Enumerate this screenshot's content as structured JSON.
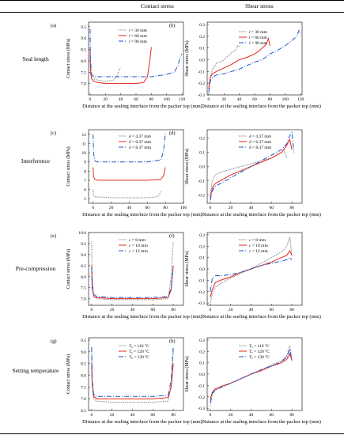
{
  "header": {
    "col1": "Contact stress",
    "col2": "Shear stress"
  },
  "rows": [
    {
      "label": "Seal length"
    },
    {
      "label": "Interference"
    },
    {
      "label": "Pre-compression"
    },
    {
      "label": "Setting temperature"
    }
  ],
  "chart_data": [
    {
      "id": "a",
      "panel": "(a)",
      "type": "line",
      "ylabel": "Contact stress (MPa)",
      "xlabel": "Distance at the sealing interface from the packer top (mm)",
      "xlim": [
        -2,
        122
      ],
      "ylim": [
        6.5,
        9.7
      ],
      "xticks": [
        0,
        20,
        40,
        60,
        80,
        100,
        120
      ],
      "yticks": [
        7.0,
        7.5,
        8.0,
        8.5,
        9.0,
        9.5
      ],
      "yticklabels": [
        "7.0",
        "7.5",
        "8.0",
        "8.5",
        "9.0",
        "9.5"
      ],
      "series": [
        {
          "name": "l = 30 mm",
          "color": "#777777",
          "dash": "1.2,1.2",
          "x": [
            0,
            0.5,
            2,
            5,
            10,
            20,
            30,
            35,
            38,
            40
          ],
          "y": [
            8.5,
            7.7,
            7.4,
            7.2,
            7.15,
            7.1,
            7.15,
            7.3,
            7.6,
            7.7
          ]
        },
        {
          "name": "l = 60 mm",
          "color": "#e8261f",
          "dash": "",
          "x": [
            0,
            0.5,
            2,
            5,
            10,
            20,
            40,
            60,
            70,
            75,
            78,
            80
          ],
          "y": [
            8.5,
            7.5,
            7.2,
            7.1,
            7.05,
            7.0,
            7.0,
            7.0,
            7.05,
            7.3,
            8.0,
            8.6
          ]
        },
        {
          "name": "l = 90 mm",
          "color": "#1a56c9",
          "dash": "6,2,1,2",
          "x": [
            0,
            0.5,
            2,
            5,
            10,
            20,
            40,
            60,
            80,
            100,
            110,
            115,
            118,
            120
          ],
          "y": [
            9.4,
            8.0,
            7.4,
            7.3,
            7.3,
            7.3,
            7.3,
            7.3,
            7.3,
            7.4,
            7.5,
            7.8,
            8.2,
            8.3
          ]
        }
      ]
    },
    {
      "id": "b",
      "panel": "(b)",
      "type": "line",
      "ylabel": "Shear stress (MPa)",
      "xlabel": "Distance at the sealing interface from the packer top (mm)",
      "xlim": [
        -2,
        122
      ],
      "ylim": [
        -0.3,
        0.32
      ],
      "xticks": [
        0,
        20,
        40,
        60,
        80,
        100,
        120
      ],
      "yticks": [
        -0.3,
        -0.2,
        -0.1,
        0.0,
        0.1,
        0.2,
        0.3
      ],
      "yticklabels": [
        "-0.3",
        "-0.2",
        "-0.1",
        "0.0",
        "0.1",
        "0.2",
        "0.3"
      ],
      "series": [
        {
          "name": "l = 30 mm",
          "color": "#777777",
          "dash": "1.2,1.2",
          "x": [
            0,
            2,
            5,
            10,
            15,
            20,
            25,
            30,
            35,
            38,
            40
          ],
          "y": [
            -0.25,
            -0.15,
            -0.08,
            -0.03,
            -0.02,
            0.0,
            0.03,
            0.06,
            0.08,
            0.12,
            0.11
          ]
        },
        {
          "name": "l = 60 mm",
          "color": "#e8261f",
          "dash": "",
          "x": [
            0,
            2,
            5,
            10,
            20,
            30,
            40,
            50,
            60,
            65,
            70,
            75,
            78,
            80
          ],
          "y": [
            -0.25,
            -0.15,
            -0.12,
            -0.1,
            -0.07,
            -0.04,
            0.0,
            0.02,
            0.05,
            0.07,
            0.1,
            0.13,
            0.18,
            0.12
          ]
        },
        {
          "name": "l = 90 mm",
          "color": "#1a56c9",
          "dash": "6,2,1,2",
          "x": [
            0,
            2,
            5,
            10,
            20,
            30,
            40,
            50,
            60,
            70,
            80,
            90,
            100,
            110,
            115,
            118,
            120
          ],
          "y": [
            -0.28,
            -0.18,
            -0.15,
            -0.13,
            -0.12,
            -0.1,
            -0.08,
            -0.05,
            -0.02,
            0.0,
            0.05,
            0.08,
            0.12,
            0.17,
            0.2,
            0.25,
            0.22
          ]
        }
      ]
    },
    {
      "id": "c",
      "panel": "(c)",
      "type": "line",
      "ylabel": "Contact stress (MPa)",
      "xlabel": "Distance at the sealing interface from the packer top (mm)",
      "xlim": [
        -5,
        100
      ],
      "ylim": [
        4.5,
        12.5
      ],
      "xticks": [
        0,
        20,
        40,
        60,
        80,
        100
      ],
      "yticks": [
        5,
        6,
        7,
        8,
        9,
        10,
        11,
        12
      ],
      "yticklabels": [
        "5",
        "6",
        "7",
        "8",
        "9",
        "10",
        "11",
        "12"
      ],
      "series": [
        {
          "name": "δ = 4.37 mm",
          "color": "#777777",
          "dash": "1.2,1.2",
          "x": [
            0,
            0.5,
            2,
            5,
            20,
            40,
            60,
            70,
            73,
            75
          ],
          "y": [
            6.0,
            5.4,
            5.2,
            5.2,
            5.1,
            5.1,
            5.1,
            5.2,
            5.4,
            5.8
          ]
        },
        {
          "name": "δ = 6.37 mm",
          "color": "#e8261f",
          "dash": "",
          "x": [
            0,
            0.5,
            2,
            5,
            20,
            40,
            60,
            75,
            78,
            80
          ],
          "y": [
            8.4,
            7.4,
            7.1,
            7.0,
            7.0,
            7.0,
            7.0,
            7.1,
            7.5,
            8.4
          ]
        },
        {
          "name": "δ = 8.37 mm",
          "color": "#1a56c9",
          "dash": "6,2,1,2",
          "x": [
            0,
            0.5,
            2,
            5,
            20,
            40,
            60,
            75,
            78,
            80
          ],
          "y": [
            12.0,
            10.0,
            9.1,
            9.0,
            9.0,
            9.0,
            9.0,
            9.2,
            10.2,
            12.1
          ]
        }
      ]
    },
    {
      "id": "d",
      "panel": "(d)",
      "type": "line",
      "ylabel": "Shear stress (MPa)",
      "xlabel": "Distance at the sealing interface from the packer top (mm)",
      "xlim": [
        -3,
        90
      ],
      "ylim": [
        -0.26,
        0.26
      ],
      "xticks": [
        0,
        20,
        40,
        60,
        80
      ],
      "yticks": [
        -0.2,
        -0.1,
        0.0,
        0.1,
        0.2
      ],
      "yticklabels": [
        "-0.2",
        "-0.1",
        "0.0",
        "0.1",
        "0.2"
      ],
      "series": [
        {
          "name": "δ = 4.37 mm",
          "color": "#777777",
          "dash": "1.2,1.2",
          "x": [
            0,
            2,
            5,
            10,
            20,
            30,
            40,
            50,
            60,
            70,
            72,
            75
          ],
          "y": [
            -0.2,
            -0.1,
            -0.06,
            -0.04,
            -0.02,
            0.0,
            0.02,
            0.04,
            0.06,
            0.1,
            0.12,
            0.06
          ]
        },
        {
          "name": "δ = 6.37 mm",
          "color": "#e8261f",
          "dash": "",
          "x": [
            0,
            2,
            5,
            10,
            20,
            30,
            40,
            50,
            60,
            70,
            75,
            78,
            80
          ],
          "y": [
            -0.22,
            -0.15,
            -0.12,
            -0.1,
            -0.06,
            -0.03,
            0.0,
            0.03,
            0.06,
            0.1,
            0.15,
            0.19,
            0.12
          ]
        },
        {
          "name": "δ = 8.37 mm",
          "color": "#1a56c9",
          "dash": "6,2,1,2",
          "x": [
            0,
            2,
            5,
            10,
            20,
            30,
            40,
            50,
            60,
            70,
            75,
            78,
            80,
            82
          ],
          "y": [
            -0.24,
            -0.17,
            -0.14,
            -0.12,
            -0.08,
            -0.04,
            0.0,
            0.04,
            0.08,
            0.12,
            0.16,
            0.22,
            0.24,
            0.1
          ]
        }
      ]
    },
    {
      "id": "e",
      "panel": "(e)",
      "type": "line",
      "ylabel": "Contact stress (MPa)",
      "xlabel": "Distance at the sealing interface from the packer top (mm)",
      "xlim": [
        -3,
        90
      ],
      "ylim": [
        6.7,
        10.0
      ],
      "xticks": [
        0,
        20,
        40,
        60,
        80
      ],
      "yticks": [
        7.0,
        7.5,
        8.0,
        8.5,
        9.0,
        9.5,
        10.0
      ],
      "yticklabels": [
        "7.0",
        "7.5",
        "8.0",
        "8.5",
        "9.0",
        "9.5",
        "10.0"
      ],
      "series": [
        {
          "name": "c = 8 mm",
          "color": "#777777",
          "dash": "1.2,1.2",
          "x": [
            0,
            0.5,
            2,
            5,
            20,
            40,
            60,
            75,
            78,
            80
          ],
          "y": [
            9.6,
            8.0,
            7.1,
            7.0,
            6.95,
            6.95,
            6.95,
            7.0,
            8.0,
            9.6
          ]
        },
        {
          "name": "c = 10 mm",
          "color": "#e8261f",
          "dash": "",
          "x": [
            0,
            0.5,
            2,
            5,
            20,
            40,
            60,
            75,
            78,
            80
          ],
          "y": [
            8.5,
            7.5,
            7.1,
            7.05,
            7.0,
            7.0,
            7.0,
            7.05,
            7.4,
            8.5
          ]
        },
        {
          "name": "c = 12 mm",
          "color": "#1a56c9",
          "dash": "6,2,1,2",
          "x": [
            0,
            0.5,
            2,
            5,
            20,
            40,
            60,
            75,
            78,
            80
          ],
          "y": [
            8.4,
            7.6,
            7.2,
            7.1,
            7.05,
            7.05,
            7.05,
            7.1,
            7.5,
            8.4
          ]
        }
      ]
    },
    {
      "id": "f",
      "panel": "(f)",
      "type": "line",
      "ylabel": "Shear stress (MPa)",
      "xlabel": "Distance at the sealing interface from the packer top (mm)",
      "xlim": [
        -3,
        90
      ],
      "ylim": [
        -0.32,
        0.32
      ],
      "xticks": [
        0,
        20,
        40,
        60,
        80
      ],
      "yticks": [
        -0.3,
        -0.2,
        -0.1,
        0.0,
        0.1,
        0.2,
        0.3
      ],
      "yticklabels": [
        "-0.3",
        "-0.2",
        "-0.1",
        "0.0",
        "0.1",
        "0.2",
        "0.3"
      ],
      "series": [
        {
          "name": "c = 8 mm",
          "color": "#777777",
          "dash": "1.2,1.2",
          "x": [
            0,
            2,
            5,
            10,
            20,
            30,
            40,
            50,
            60,
            70,
            75,
            78,
            80
          ],
          "y": [
            -0.3,
            -0.22,
            -0.16,
            -0.13,
            -0.08,
            -0.04,
            0.0,
            0.05,
            0.1,
            0.15,
            0.2,
            0.28,
            0.12
          ]
        },
        {
          "name": "c = 10 mm",
          "color": "#e8261f",
          "dash": "",
          "x": [
            0,
            2,
            5,
            10,
            20,
            30,
            40,
            50,
            60,
            70,
            75,
            78,
            80
          ],
          "y": [
            -0.25,
            -0.18,
            -0.12,
            -0.1,
            -0.07,
            -0.03,
            0.0,
            0.03,
            0.06,
            0.1,
            0.12,
            0.16,
            0.12
          ]
        },
        {
          "name": "c = 12 mm",
          "color": "#1a56c9",
          "dash": "6,2,1,2",
          "x": [
            0,
            2,
            5,
            10,
            20,
            30,
            40,
            50,
            60,
            70,
            75,
            78,
            80
          ],
          "y": [
            -0.2,
            -0.08,
            -0.06,
            -0.06,
            -0.05,
            -0.03,
            0.0,
            0.03,
            0.05,
            0.07,
            0.08,
            0.1,
            0.08
          ]
        }
      ]
    },
    {
      "id": "g",
      "panel": "(g)",
      "type": "line",
      "ylabel": "Contact stress (MPa)",
      "xlabel": "Distance at the sealing interface from the packer top (mm)",
      "xlim": [
        -3,
        90
      ],
      "ylim": [
        6.5,
        9.6
      ],
      "xticks": [
        0,
        20,
        40,
        60,
        80
      ],
      "yticks": [
        6.5,
        7.0,
        7.5,
        8.0,
        8.5,
        9.0,
        9.5
      ],
      "yticklabels": [
        "6.5",
        "7.0",
        "7.5",
        "8.0",
        "8.5",
        "9.0",
        "9.5"
      ],
      "series": [
        {
          "name": "Ts = 110 °C",
          "color": "#777777",
          "dash": "1.2,1.2",
          "x": [
            0,
            0.5,
            2,
            5,
            20,
            40,
            60,
            75,
            78,
            80
          ],
          "y": [
            9.1,
            7.8,
            7.0,
            6.9,
            6.85,
            6.85,
            6.85,
            6.9,
            7.6,
            9.1
          ]
        },
        {
          "name": "Ts = 120 °C",
          "color": "#e8261f",
          "dash": "",
          "x": [
            0,
            0.5,
            2,
            5,
            20,
            40,
            60,
            75,
            78,
            80
          ],
          "y": [
            8.5,
            7.6,
            7.1,
            7.0,
            7.0,
            7.0,
            7.0,
            7.05,
            7.5,
            8.5
          ]
        },
        {
          "name": "Ts = 130 °C",
          "color": "#1a56c9",
          "dash": "6,2,1,2",
          "x": [
            0,
            0.5,
            2,
            5,
            20,
            40,
            60,
            75,
            78,
            80
          ],
          "y": [
            9.2,
            7.8,
            7.2,
            7.1,
            7.1,
            7.1,
            7.1,
            7.15,
            7.8,
            9.2
          ]
        }
      ]
    },
    {
      "id": "h",
      "panel": "(h)",
      "type": "line",
      "ylabel": "Shear stress (MPa)",
      "xlabel": "Distance at the sealing interface from the packer top (mm)",
      "xlim": [
        -3,
        90
      ],
      "ylim": [
        -0.32,
        0.32
      ],
      "xticks": [
        0,
        20,
        40,
        60,
        80
      ],
      "yticks": [
        -0.3,
        -0.2,
        -0.1,
        0.0,
        0.1,
        0.2,
        0.3
      ],
      "yticklabels": [
        "-0.3",
        "-0.2",
        "-0.1",
        "0.0",
        "0.1",
        "0.2",
        "0.3"
      ],
      "series": [
        {
          "name": "Ts = 110 °C",
          "color": "#777777",
          "dash": "1.2,1.2",
          "x": [
            0,
            2,
            5,
            10,
            20,
            30,
            40,
            50,
            60,
            70,
            75,
            78,
            80
          ],
          "y": [
            -0.28,
            -0.18,
            -0.14,
            -0.12,
            -0.08,
            -0.04,
            0.0,
            0.04,
            0.08,
            0.12,
            0.16,
            0.25,
            0.12
          ]
        },
        {
          "name": "Ts = 120 °C",
          "color": "#e8261f",
          "dash": "",
          "x": [
            0,
            2,
            5,
            10,
            20,
            30,
            40,
            50,
            60,
            70,
            75,
            78,
            80
          ],
          "y": [
            -0.22,
            -0.16,
            -0.13,
            -0.11,
            -0.08,
            -0.04,
            0.0,
            0.03,
            0.07,
            0.1,
            0.13,
            0.18,
            0.12
          ]
        },
        {
          "name": "Ts = 130 °C",
          "color": "#1a56c9",
          "dash": "6,2,1,2",
          "x": [
            0,
            2,
            5,
            10,
            20,
            30,
            40,
            50,
            60,
            70,
            75,
            78,
            80
          ],
          "y": [
            -0.25,
            -0.17,
            -0.14,
            -0.12,
            -0.08,
            -0.04,
            0.0,
            0.04,
            0.07,
            0.11,
            0.15,
            0.22,
            0.12
          ]
        }
      ]
    }
  ]
}
